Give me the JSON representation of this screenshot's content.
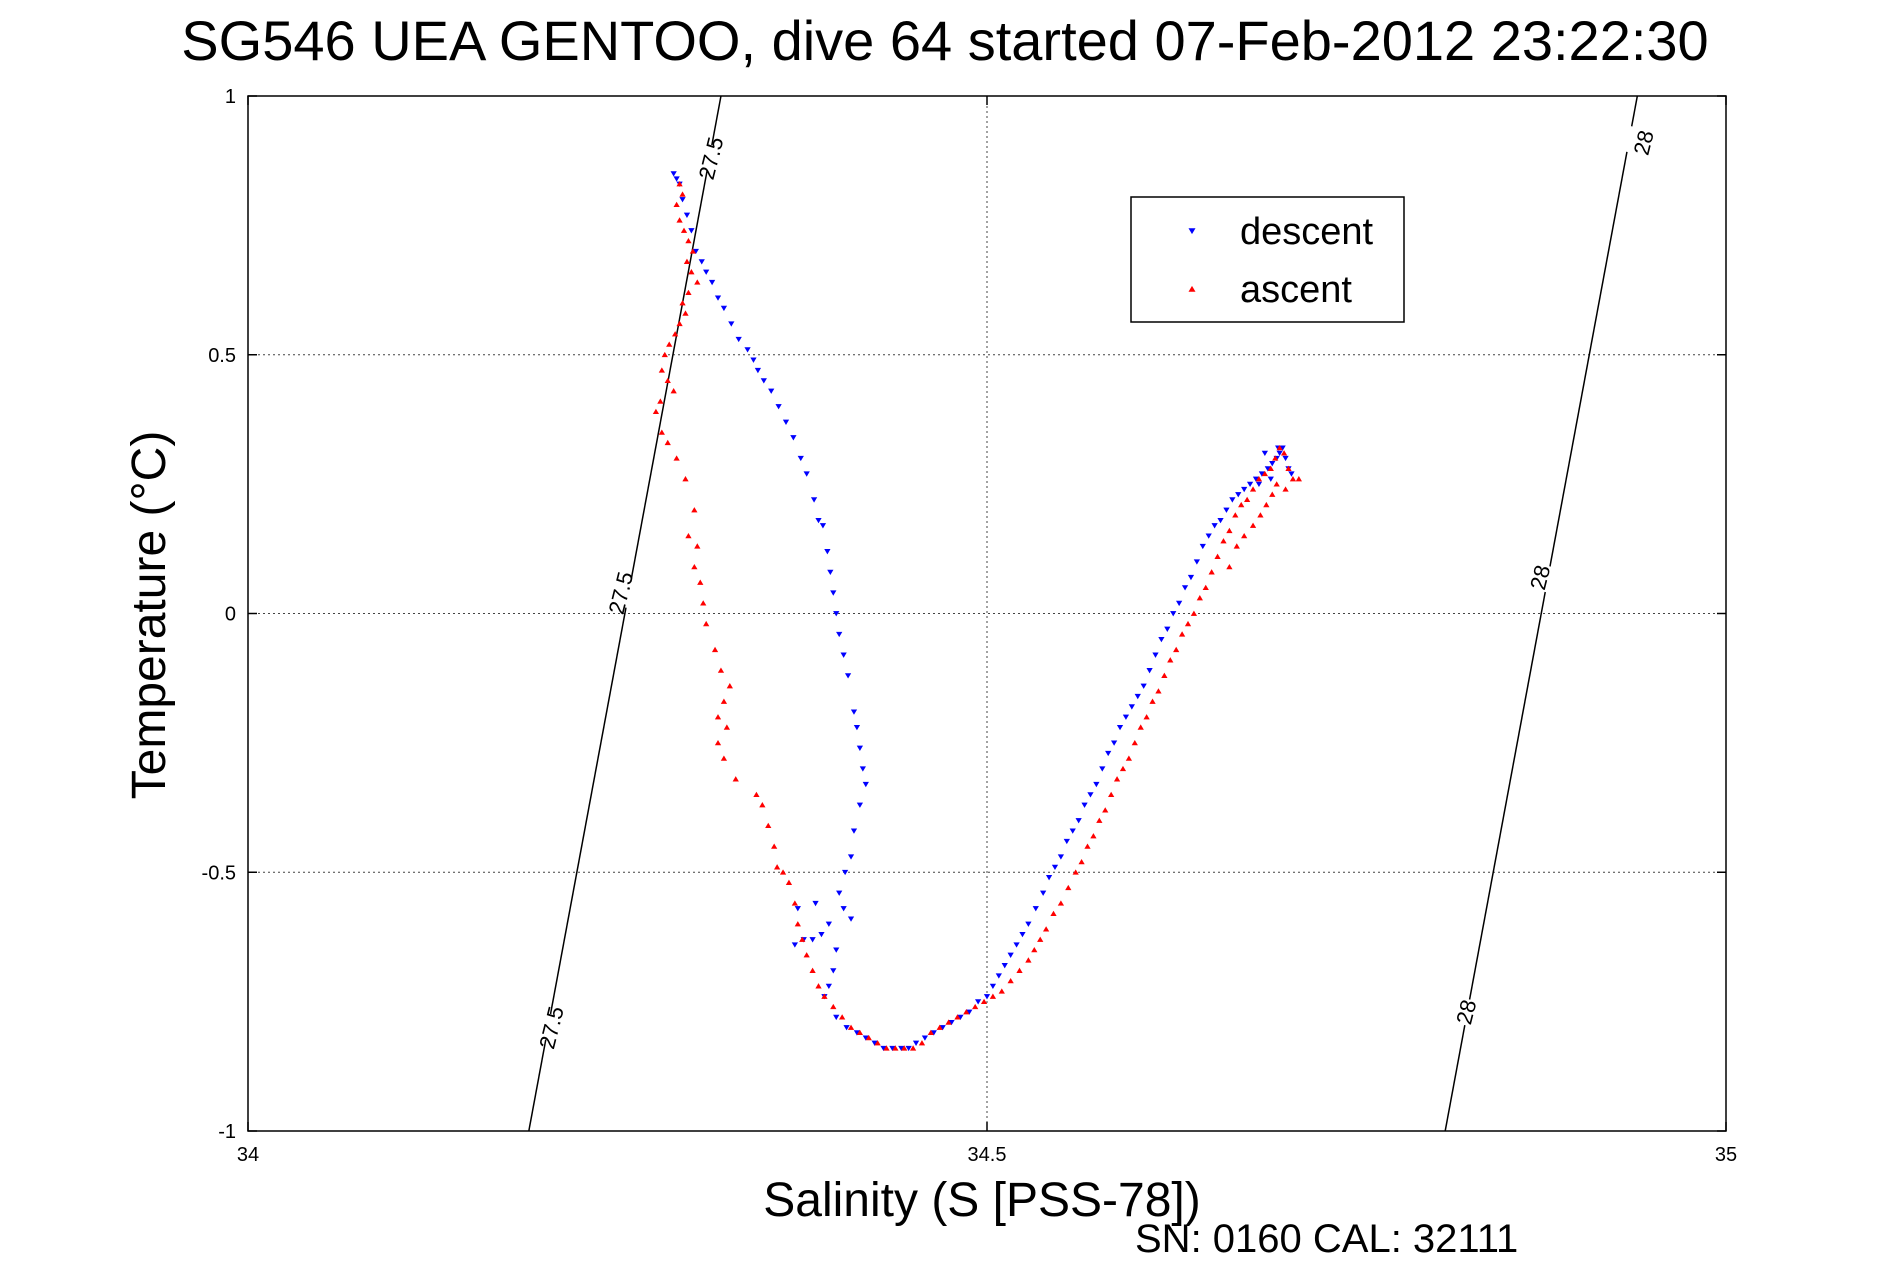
{
  "chart_data": {
    "type": "scatter",
    "title": "SG546 UEA GENTOO, dive 64 started 07-Feb-2012 23:22:30",
    "xlabel": "Salinity (S [PSS-78])",
    "ylabel": "Temperature (°C)",
    "xlim": [
      34,
      35
    ],
    "ylim": [
      -1,
      1
    ],
    "xticks": [
      "34",
      "34.5",
      "35"
    ],
    "yticks": [
      "1",
      "0.5",
      "0",
      "-0.5",
      "-1"
    ],
    "grid": true,
    "legend_position": "upper-right",
    "footer": "SN: 0160  CAL: 32111",
    "colors": {
      "descent": "#0000ff",
      "ascent": "#ff0000"
    },
    "density_contours": [
      {
        "label": "27.5",
        "points": [
          [
            34.19,
            -1.0
          ],
          [
            34.32,
            1.0
          ]
        ]
      },
      {
        "label": "28",
        "points": [
          [
            34.81,
            -1.0
          ],
          [
            34.94,
            1.0
          ]
        ]
      }
    ],
    "contour_labels": [
      {
        "text": "27.5",
        "x": 34.313,
        "y": 0.88
      },
      {
        "text": "27.5",
        "x": 34.252,
        "y": 0.04
      },
      {
        "text": "27.5",
        "x": 34.205,
        "y": -0.8
      },
      {
        "text": "28",
        "x": 34.944,
        "y": 0.91
      },
      {
        "text": "28",
        "x": 34.874,
        "y": 0.07
      },
      {
        "text": "28",
        "x": 34.824,
        "y": -0.77
      }
    ],
    "series": [
      {
        "name": "descent",
        "marker": "triangle-down",
        "color": "#0000ff",
        "points": [
          [
            34.288,
            0.85
          ],
          [
            34.29,
            0.84
          ],
          [
            34.292,
            0.83
          ],
          [
            34.294,
            0.8
          ],
          [
            34.297,
            0.77
          ],
          [
            34.3,
            0.74
          ],
          [
            34.303,
            0.7
          ],
          [
            34.307,
            0.68
          ],
          [
            34.31,
            0.66
          ],
          [
            34.314,
            0.64
          ],
          [
            34.318,
            0.61
          ],
          [
            34.322,
            0.59
          ],
          [
            34.327,
            0.56
          ],
          [
            34.332,
            0.53
          ],
          [
            34.338,
            0.51
          ],
          [
            34.342,
            0.49
          ],
          [
            34.345,
            0.47
          ],
          [
            34.349,
            0.45
          ],
          [
            34.354,
            0.43
          ],
          [
            34.359,
            0.4
          ],
          [
            34.364,
            0.37
          ],
          [
            34.369,
            0.34
          ],
          [
            34.374,
            0.3
          ],
          [
            34.378,
            0.27
          ],
          [
            34.383,
            0.22
          ],
          [
            34.386,
            0.18
          ],
          [
            34.389,
            0.17
          ],
          [
            34.392,
            0.12
          ],
          [
            34.394,
            0.08
          ],
          [
            34.396,
            0.04
          ],
          [
            34.398,
            0.0
          ],
          [
            34.4,
            -0.04
          ],
          [
            34.403,
            -0.08
          ],
          [
            34.406,
            -0.12
          ],
          [
            34.41,
            -0.19
          ],
          [
            34.412,
            -0.22
          ],
          [
            34.414,
            -0.26
          ],
          [
            34.416,
            -0.3
          ],
          [
            34.418,
            -0.33
          ],
          [
            34.414,
            -0.37
          ],
          [
            34.41,
            -0.42
          ],
          [
            34.408,
            -0.47
          ],
          [
            34.404,
            -0.5
          ],
          [
            34.4,
            -0.54
          ],
          [
            34.403,
            -0.57
          ],
          [
            34.408,
            -0.59
          ],
          [
            34.393,
            -0.6
          ],
          [
            34.388,
            -0.62
          ],
          [
            34.382,
            -0.63
          ],
          [
            34.376,
            -0.63
          ],
          [
            34.37,
            -0.64
          ],
          [
            34.372,
            -0.57
          ],
          [
            34.384,
            -0.56
          ],
          [
            34.398,
            -0.65
          ],
          [
            34.396,
            -0.69
          ],
          [
            34.393,
            -0.72
          ],
          [
            34.39,
            -0.74
          ],
          [
            34.398,
            -0.78
          ],
          [
            34.405,
            -0.8
          ],
          [
            34.412,
            -0.81
          ],
          [
            34.418,
            -0.82
          ],
          [
            34.424,
            -0.83
          ],
          [
            34.43,
            -0.84
          ],
          [
            34.436,
            -0.84
          ],
          [
            34.442,
            -0.84
          ],
          [
            34.447,
            -0.84
          ],
          [
            34.452,
            -0.83
          ],
          [
            34.458,
            -0.82
          ],
          [
            34.464,
            -0.81
          ],
          [
            34.47,
            -0.8
          ],
          [
            34.476,
            -0.79
          ],
          [
            34.482,
            -0.78
          ],
          [
            34.488,
            -0.77
          ],
          [
            34.494,
            -0.75
          ],
          [
            34.5,
            -0.74
          ],
          [
            34.504,
            -0.72
          ],
          [
            34.508,
            -0.7
          ],
          [
            34.512,
            -0.68
          ],
          [
            34.516,
            -0.66
          ],
          [
            34.52,
            -0.64
          ],
          [
            34.524,
            -0.62
          ],
          [
            34.528,
            -0.6
          ],
          [
            34.533,
            -0.57
          ],
          [
            34.538,
            -0.54
          ],
          [
            34.542,
            -0.51
          ],
          [
            34.546,
            -0.49
          ],
          [
            34.55,
            -0.47
          ],
          [
            34.554,
            -0.44
          ],
          [
            34.558,
            -0.42
          ],
          [
            34.562,
            -0.4
          ],
          [
            34.566,
            -0.37
          ],
          [
            34.57,
            -0.35
          ],
          [
            34.574,
            -0.33
          ],
          [
            34.578,
            -0.3
          ],
          [
            34.582,
            -0.27
          ],
          [
            34.586,
            -0.25
          ],
          [
            34.59,
            -0.22
          ],
          [
            34.594,
            -0.2
          ],
          [
            34.598,
            -0.18
          ],
          [
            34.602,
            -0.16
          ],
          [
            34.606,
            -0.14
          ],
          [
            34.61,
            -0.11
          ],
          [
            34.614,
            -0.08
          ],
          [
            34.618,
            -0.05
          ],
          [
            34.622,
            -0.03
          ],
          [
            34.626,
            0.0
          ],
          [
            34.63,
            0.02
          ],
          [
            34.634,
            0.05
          ],
          [
            34.638,
            0.07
          ],
          [
            34.642,
            0.1
          ],
          [
            34.646,
            0.13
          ],
          [
            34.65,
            0.15
          ],
          [
            34.654,
            0.17
          ],
          [
            34.658,
            0.18
          ],
          [
            34.662,
            0.2
          ],
          [
            34.666,
            0.22
          ],
          [
            34.67,
            0.23
          ],
          [
            34.674,
            0.24
          ],
          [
            34.678,
            0.25
          ],
          [
            34.682,
            0.26
          ],
          [
            34.686,
            0.27
          ],
          [
            34.69,
            0.28
          ],
          [
            34.693,
            0.29
          ],
          [
            34.696,
            0.3
          ],
          [
            34.698,
            0.31
          ],
          [
            34.7,
            0.32
          ],
          [
            34.702,
            0.3
          ],
          [
            34.704,
            0.28
          ],
          [
            34.706,
            0.27
          ],
          [
            34.697,
            0.32
          ],
          [
            34.688,
            0.31
          ],
          [
            34.692,
            0.26
          ],
          [
            34.684,
            0.25
          ]
        ]
      },
      {
        "name": "ascent",
        "marker": "triangle-up",
        "color": "#ff0000",
        "points": [
          [
            34.292,
            0.83
          ],
          [
            34.294,
            0.81
          ],
          [
            34.29,
            0.79
          ],
          [
            34.292,
            0.76
          ],
          [
            34.295,
            0.74
          ],
          [
            34.298,
            0.72
          ],
          [
            34.301,
            0.7
          ],
          [
            34.297,
            0.68
          ],
          [
            34.3,
            0.66
          ],
          [
            34.304,
            0.64
          ],
          [
            34.298,
            0.62
          ],
          [
            34.294,
            0.6
          ],
          [
            34.296,
            0.58
          ],
          [
            34.292,
            0.56
          ],
          [
            34.289,
            0.54
          ],
          [
            34.285,
            0.52
          ],
          [
            34.282,
            0.5
          ],
          [
            34.28,
            0.47
          ],
          [
            34.284,
            0.45
          ],
          [
            34.288,
            0.43
          ],
          [
            34.279,
            0.41
          ],
          [
            34.276,
            0.39
          ],
          [
            34.28,
            0.35
          ],
          [
            34.284,
            0.33
          ],
          [
            34.29,
            0.3
          ],
          [
            34.296,
            0.26
          ],
          [
            34.302,
            0.2
          ],
          [
            34.298,
            0.15
          ],
          [
            34.304,
            0.13
          ],
          [
            34.302,
            0.09
          ],
          [
            34.306,
            0.06
          ],
          [
            34.308,
            0.02
          ],
          [
            34.31,
            -0.02
          ],
          [
            34.316,
            -0.07
          ],
          [
            34.32,
            -0.11
          ],
          [
            34.326,
            -0.14
          ],
          [
            34.322,
            -0.17
          ],
          [
            34.318,
            -0.2
          ],
          [
            34.324,
            -0.22
          ],
          [
            34.318,
            -0.25
          ],
          [
            34.322,
            -0.28
          ],
          [
            34.33,
            -0.32
          ],
          [
            34.344,
            -0.35
          ],
          [
            34.348,
            -0.37
          ],
          [
            34.352,
            -0.41
          ],
          [
            34.356,
            -0.45
          ],
          [
            34.358,
            -0.49
          ],
          [
            34.362,
            -0.5
          ],
          [
            34.366,
            -0.52
          ],
          [
            34.37,
            -0.56
          ],
          [
            34.372,
            -0.6
          ],
          [
            34.375,
            -0.63
          ],
          [
            34.378,
            -0.66
          ],
          [
            34.382,
            -0.69
          ],
          [
            34.386,
            -0.72
          ],
          [
            34.39,
            -0.74
          ],
          [
            34.396,
            -0.76
          ],
          [
            34.402,
            -0.78
          ],
          [
            34.408,
            -0.8
          ],
          [
            34.414,
            -0.81
          ],
          [
            34.42,
            -0.82
          ],
          [
            34.426,
            -0.83
          ],
          [
            34.432,
            -0.84
          ],
          [
            34.438,
            -0.84
          ],
          [
            34.444,
            -0.84
          ],
          [
            34.45,
            -0.84
          ],
          [
            34.456,
            -0.83
          ],
          [
            34.462,
            -0.81
          ],
          [
            34.468,
            -0.8
          ],
          [
            34.474,
            -0.79
          ],
          [
            34.48,
            -0.78
          ],
          [
            34.486,
            -0.77
          ],
          [
            34.492,
            -0.76
          ],
          [
            34.498,
            -0.75
          ],
          [
            34.504,
            -0.74
          ],
          [
            34.51,
            -0.73
          ],
          [
            34.516,
            -0.71
          ],
          [
            34.522,
            -0.69
          ],
          [
            34.528,
            -0.67
          ],
          [
            34.532,
            -0.65
          ],
          [
            34.536,
            -0.63
          ],
          [
            34.54,
            -0.61
          ],
          [
            34.545,
            -0.58
          ],
          [
            34.55,
            -0.56
          ],
          [
            34.555,
            -0.53
          ],
          [
            34.56,
            -0.5
          ],
          [
            34.564,
            -0.48
          ],
          [
            34.568,
            -0.45
          ],
          [
            34.572,
            -0.43
          ],
          [
            34.576,
            -0.4
          ],
          [
            34.58,
            -0.38
          ],
          [
            34.584,
            -0.35
          ],
          [
            34.588,
            -0.32
          ],
          [
            34.592,
            -0.3
          ],
          [
            34.596,
            -0.28
          ],
          [
            34.6,
            -0.25
          ],
          [
            34.604,
            -0.22
          ],
          [
            34.608,
            -0.2
          ],
          [
            34.612,
            -0.17
          ],
          [
            34.616,
            -0.15
          ],
          [
            34.62,
            -0.12
          ],
          [
            34.624,
            -0.09
          ],
          [
            34.628,
            -0.07
          ],
          [
            34.632,
            -0.04
          ],
          [
            34.636,
            -0.02
          ],
          [
            34.64,
            0.0
          ],
          [
            34.644,
            0.03
          ],
          [
            34.648,
            0.05
          ],
          [
            34.652,
            0.08
          ],
          [
            34.656,
            0.11
          ],
          [
            34.66,
            0.14
          ],
          [
            34.664,
            0.16
          ],
          [
            34.668,
            0.19
          ],
          [
            34.672,
            0.21
          ],
          [
            34.676,
            0.22
          ],
          [
            34.68,
            0.24
          ],
          [
            34.684,
            0.26
          ],
          [
            34.688,
            0.27
          ],
          [
            34.692,
            0.28
          ],
          [
            34.695,
            0.3
          ],
          [
            34.698,
            0.32
          ],
          [
            34.701,
            0.31
          ],
          [
            34.704,
            0.28
          ],
          [
            34.707,
            0.26
          ],
          [
            34.711,
            0.26
          ],
          [
            34.702,
            0.24
          ],
          [
            34.696,
            0.25
          ],
          [
            34.693,
            0.23
          ],
          [
            34.689,
            0.21
          ],
          [
            34.685,
            0.19
          ],
          [
            34.68,
            0.17
          ],
          [
            34.674,
            0.15
          ],
          [
            34.669,
            0.13
          ],
          [
            34.664,
            0.09
          ]
        ]
      }
    ]
  }
}
